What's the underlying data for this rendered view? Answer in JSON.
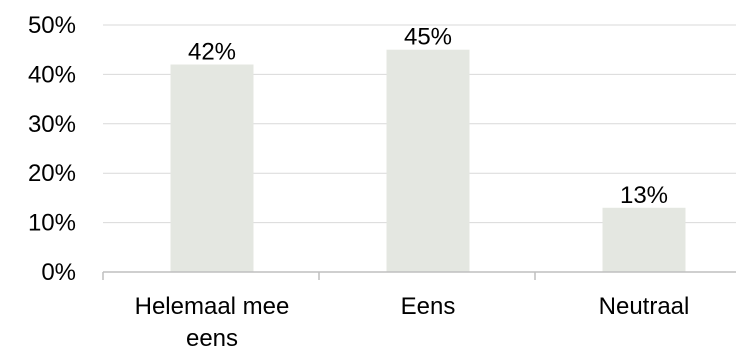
{
  "chart_data": {
    "type": "bar",
    "title": "",
    "xlabel": "",
    "ylabel": "",
    "categories": [
      [
        "Helemaal mee",
        "eens"
      ],
      [
        "Eens"
      ],
      [
        "Neutraal"
      ]
    ],
    "values": [
      42,
      45,
      13
    ],
    "data_labels": [
      "42%",
      "45%",
      "13%"
    ],
    "ylim": [
      0,
      50
    ],
    "yticks": [
      0,
      10,
      20,
      30,
      40,
      50
    ],
    "ytick_labels": [
      "0%",
      "10%",
      "20%",
      "30%",
      "40%",
      "50%"
    ],
    "grid": true,
    "legend": "none",
    "colors": {
      "bar": "#e4e7e1",
      "grid": "#d9d9d9",
      "axis": "#bfbfbf",
      "text": "#000000"
    }
  }
}
